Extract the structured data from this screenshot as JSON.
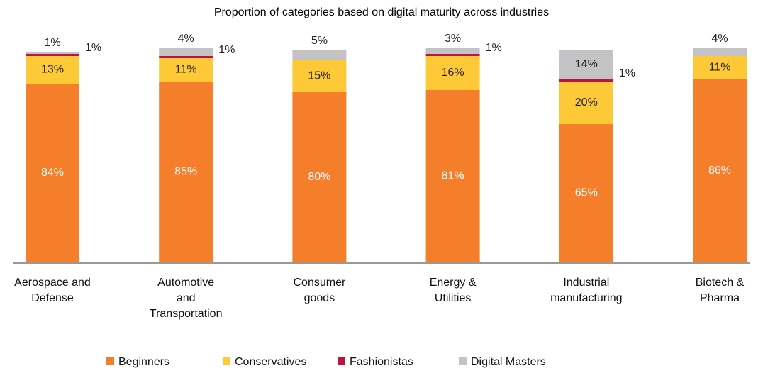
{
  "chart_data": {
    "type": "stacked-bar",
    "title": "Proportion of categories based on digital maturity across industries",
    "categories": [
      "Aerospace and Defense",
      "Automotive and Transportation",
      "Consumer goods",
      "Energy & Utilities",
      "Industrial manufacturing",
      "Biotech & Pharma"
    ],
    "series": [
      {
        "name": "Beginners",
        "color": "#f47e2a",
        "values": [
          84,
          85,
          80,
          81,
          65,
          86
        ],
        "value_labels": [
          "84%",
          "85%",
          "80%",
          "81%",
          "65%",
          "86%"
        ]
      },
      {
        "name": "Conservatives",
        "color": "#fdc936",
        "values": [
          13,
          11,
          15,
          16,
          20,
          11
        ],
        "value_labels": [
          "13%",
          "11%",
          "15%",
          "16%",
          "20%",
          "11%"
        ]
      },
      {
        "name": "Fashionistas",
        "color": "#c1113f",
        "values": [
          1,
          1,
          null,
          1,
          1,
          null
        ],
        "value_labels": [
          "1%",
          "1%",
          null,
          "1%",
          "1%",
          null
        ]
      },
      {
        "name": "Digital Masters",
        "color": "#c3c3c5",
        "values": [
          1,
          4,
          5,
          3,
          14,
          4
        ],
        "value_labels": [
          "1%",
          "4%",
          "5%",
          "3%",
          "14%",
          "4%"
        ]
      }
    ],
    "ylim": [
      0,
      100
    ]
  }
}
